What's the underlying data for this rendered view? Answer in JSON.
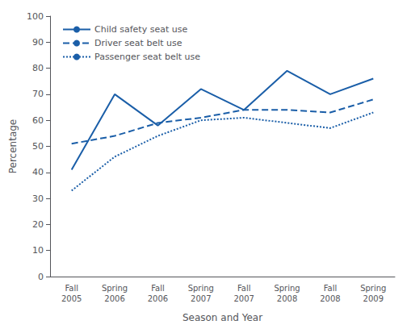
{
  "chart_data": {
    "type": "line",
    "xlabel": "Season and Year",
    "ylabel": "Percentage",
    "categories": [
      "Fall\n2005",
      "Spring\n2006",
      "Fall\n2006",
      "Spring\n2007",
      "Fall\n2007",
      "Spring\n2008",
      "Fall\n2008",
      "Spring\n2009"
    ],
    "series": [
      {
        "name": "Child safety seat use",
        "color": "#1a5ea8",
        "line_style": "solid",
        "values": [
          41,
          70,
          58,
          72,
          64,
          79,
          70,
          76
        ]
      },
      {
        "name": "Driver seat belt use",
        "color": "#1a5ea8",
        "line_style": "dashed",
        "values": [
          51,
          54,
          59,
          61,
          64,
          64,
          63,
          68
        ]
      },
      {
        "name": "Passenger seat belt use",
        "color": "#1a5ea8",
        "line_style": "dotted",
        "values": [
          33,
          46,
          54,
          60,
          61,
          59,
          57,
          63
        ]
      }
    ],
    "ylim": [
      0,
      100
    ],
    "yticks": [
      0,
      10,
      20,
      30,
      40,
      50,
      60,
      70,
      80,
      90,
      100
    ],
    "grid": false,
    "legend": "upper left"
  }
}
